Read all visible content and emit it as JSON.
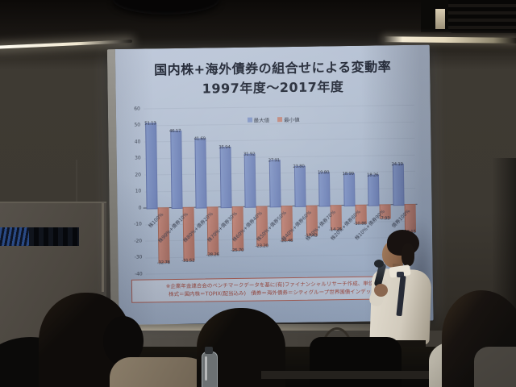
{
  "slide": {
    "title_line1": "国内株+海外債券の組合せによる変動率",
    "title_line2": "1997年度～2017年度",
    "footnote_line1": "※企業年金連合会のベンチマークデータを基に(有)ファイナンシャルリサーチ作成、単位＝%",
    "footnote_line2": "株式＝国内株＝TOPIX(配当込み)　債券＝海外債券＝シティグループ世界国債インデックス",
    "colors": {
      "slide_bg": "#aebaca",
      "title_text": "#242a38",
      "max_bar": "#8094c4",
      "min_bar": "#bf8579",
      "footnote_text": "#9c4a40"
    }
  },
  "chart_data": {
    "type": "bar",
    "title": "国内株+海外債券の組合せによる変動率 1997年度～2017年度",
    "categories": [
      "株100%",
      "株90%+債券10%",
      "株80%+債券20%",
      "株70%+債券30%",
      "株60%+債券40%",
      "株50%+債券50%",
      "株40%+債券60%",
      "株30%+債券70%",
      "株20%+債券80%",
      "株10%+債券90%",
      "債券100%"
    ],
    "series": [
      {
        "name": "最大値",
        "color": "#8094c4",
        "values": [
          51.13,
          46.17,
          41.69,
          35.94,
          31.92,
          27.91,
          23.8,
          19.8,
          18.99,
          18.26,
          24.19
        ]
      },
      {
        "name": "最小値",
        "color": "#bf8579",
        "values": [
          -32.78,
          -31.52,
          -28.26,
          -25.7,
          -23.2,
          -20.46,
          -17.43,
          -14.25,
          -10.86,
          -7.93,
          -16.15
        ]
      }
    ],
    "xlabel": "",
    "ylabel": "",
    "ylim": [
      -40,
      60
    ],
    "ytick_step": 10,
    "grid": false,
    "legend_position": "top",
    "value_labels": true
  }
}
